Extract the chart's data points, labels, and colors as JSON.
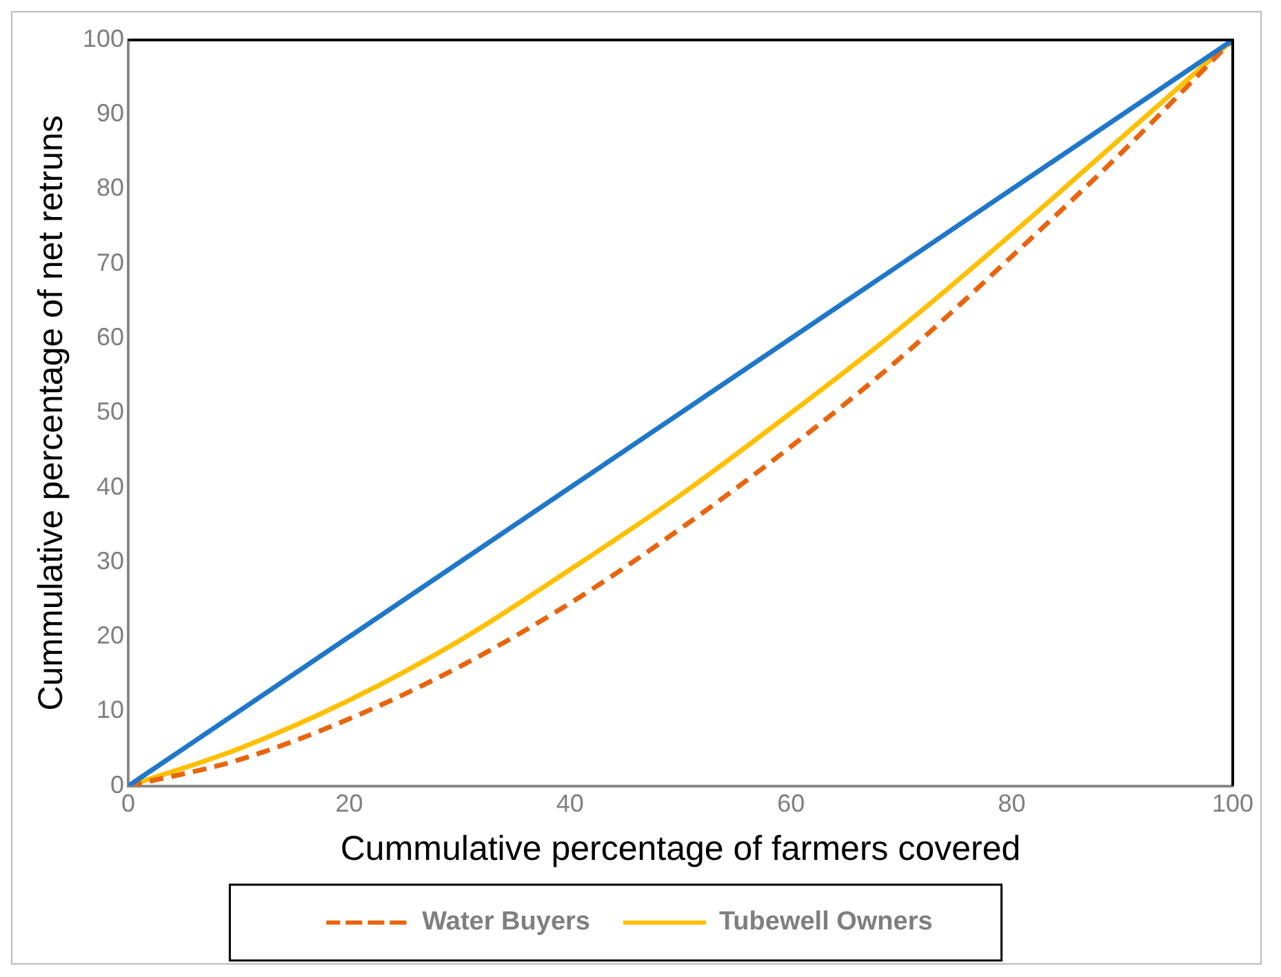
{
  "chart_data": {
    "type": "line",
    "xlabel": "Cummulative percentage of farmers covered",
    "ylabel": "Cummulative percentage of net retruns",
    "xlim": [
      0,
      100
    ],
    "ylim": [
      0,
      100
    ],
    "xticks": [
      0,
      20,
      40,
      60,
      80,
      100
    ],
    "yticks": [
      0,
      10,
      20,
      30,
      40,
      50,
      60,
      70,
      80,
      90,
      100
    ],
    "grid": false,
    "legend": "bottom",
    "marker": "none",
    "series": [
      {
        "color": "#1f77c9",
        "x": [
          0,
          100
        ],
        "values": [
          0,
          100
        ],
        "line_style": "solid"
      },
      {
        "name": "Water Buyers",
        "color": "#e8650e",
        "x": [
          0,
          10,
          20,
          30,
          40,
          50,
          60,
          70,
          80,
          90,
          100
        ],
        "values": [
          0,
          3.5,
          9,
          16,
          24.5,
          34.5,
          45.5,
          57.5,
          71,
          85,
          100
        ],
        "line_style": "dashed"
      },
      {
        "name": "Tubewell Owners",
        "color": "#ffc000",
        "x": [
          0,
          10,
          20,
          30,
          40,
          50,
          60,
          70,
          80,
          90,
          100
        ],
        "values": [
          0,
          5,
          11.5,
          19.5,
          29,
          39,
          50,
          61.5,
          74,
          87,
          100
        ],
        "line_style": "solid"
      }
    ]
  }
}
